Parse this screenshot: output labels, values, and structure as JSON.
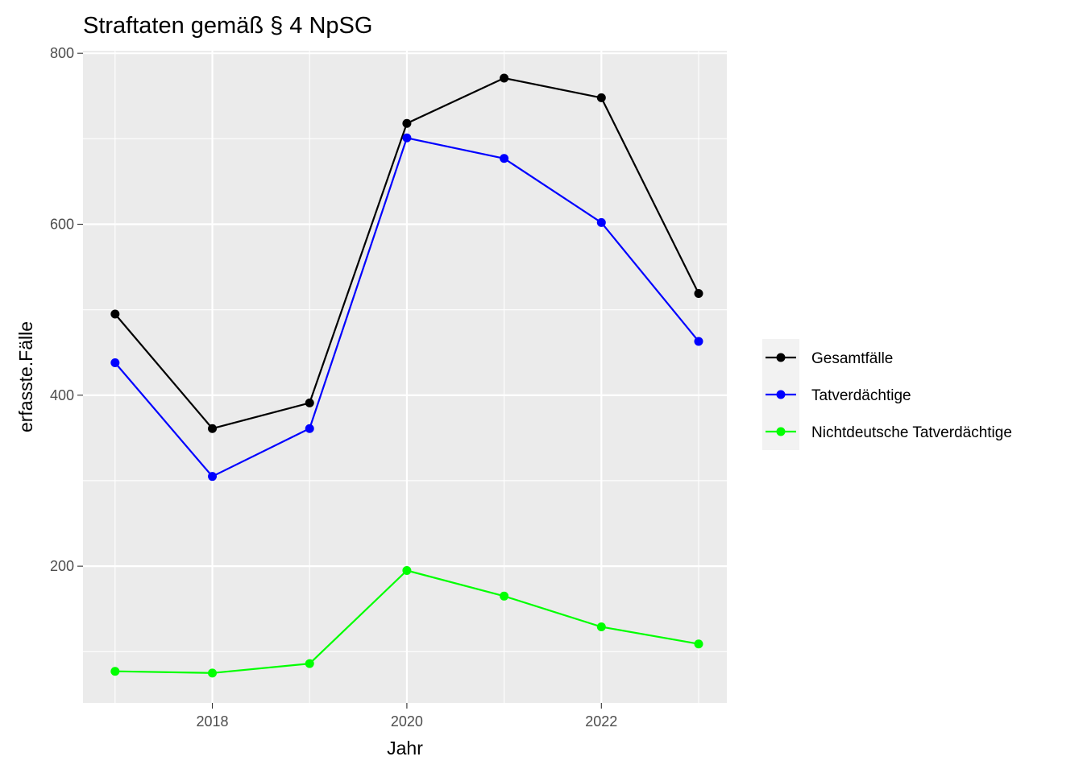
{
  "chart_data": {
    "type": "line",
    "title": "Straftaten gemäß § 4 NpSG",
    "xlabel": "Jahr",
    "ylabel": "erfasste.Fälle",
    "x": [
      2017,
      2018,
      2019,
      2020,
      2021,
      2022,
      2023
    ],
    "x_ticks": [
      2018,
      2020,
      2022
    ],
    "x_tick_labels": [
      "2018",
      "2020",
      "2022"
    ],
    "y_ticks": [
      200,
      400,
      600,
      800
    ],
    "y_tick_labels": [
      "200",
      "400",
      "600",
      "800"
    ],
    "xlim": [
      2016.67,
      2023.29
    ],
    "ylim": [
      40,
      803
    ],
    "grid": true,
    "legend_position": "right",
    "series": [
      {
        "name": "Gesamtfälle",
        "color": "#000000",
        "values": [
          495,
          361,
          391,
          718,
          771,
          748,
          519
        ]
      },
      {
        "name": "Tatverdächtige",
        "color": "#0000FF",
        "values": [
          438,
          305,
          361,
          701,
          677,
          602,
          463
        ]
      },
      {
        "name": "Nichtdeutsche Tatverdächtige",
        "color": "#00FF00",
        "values": [
          77,
          75,
          86,
          195,
          165,
          129,
          109
        ]
      }
    ]
  }
}
